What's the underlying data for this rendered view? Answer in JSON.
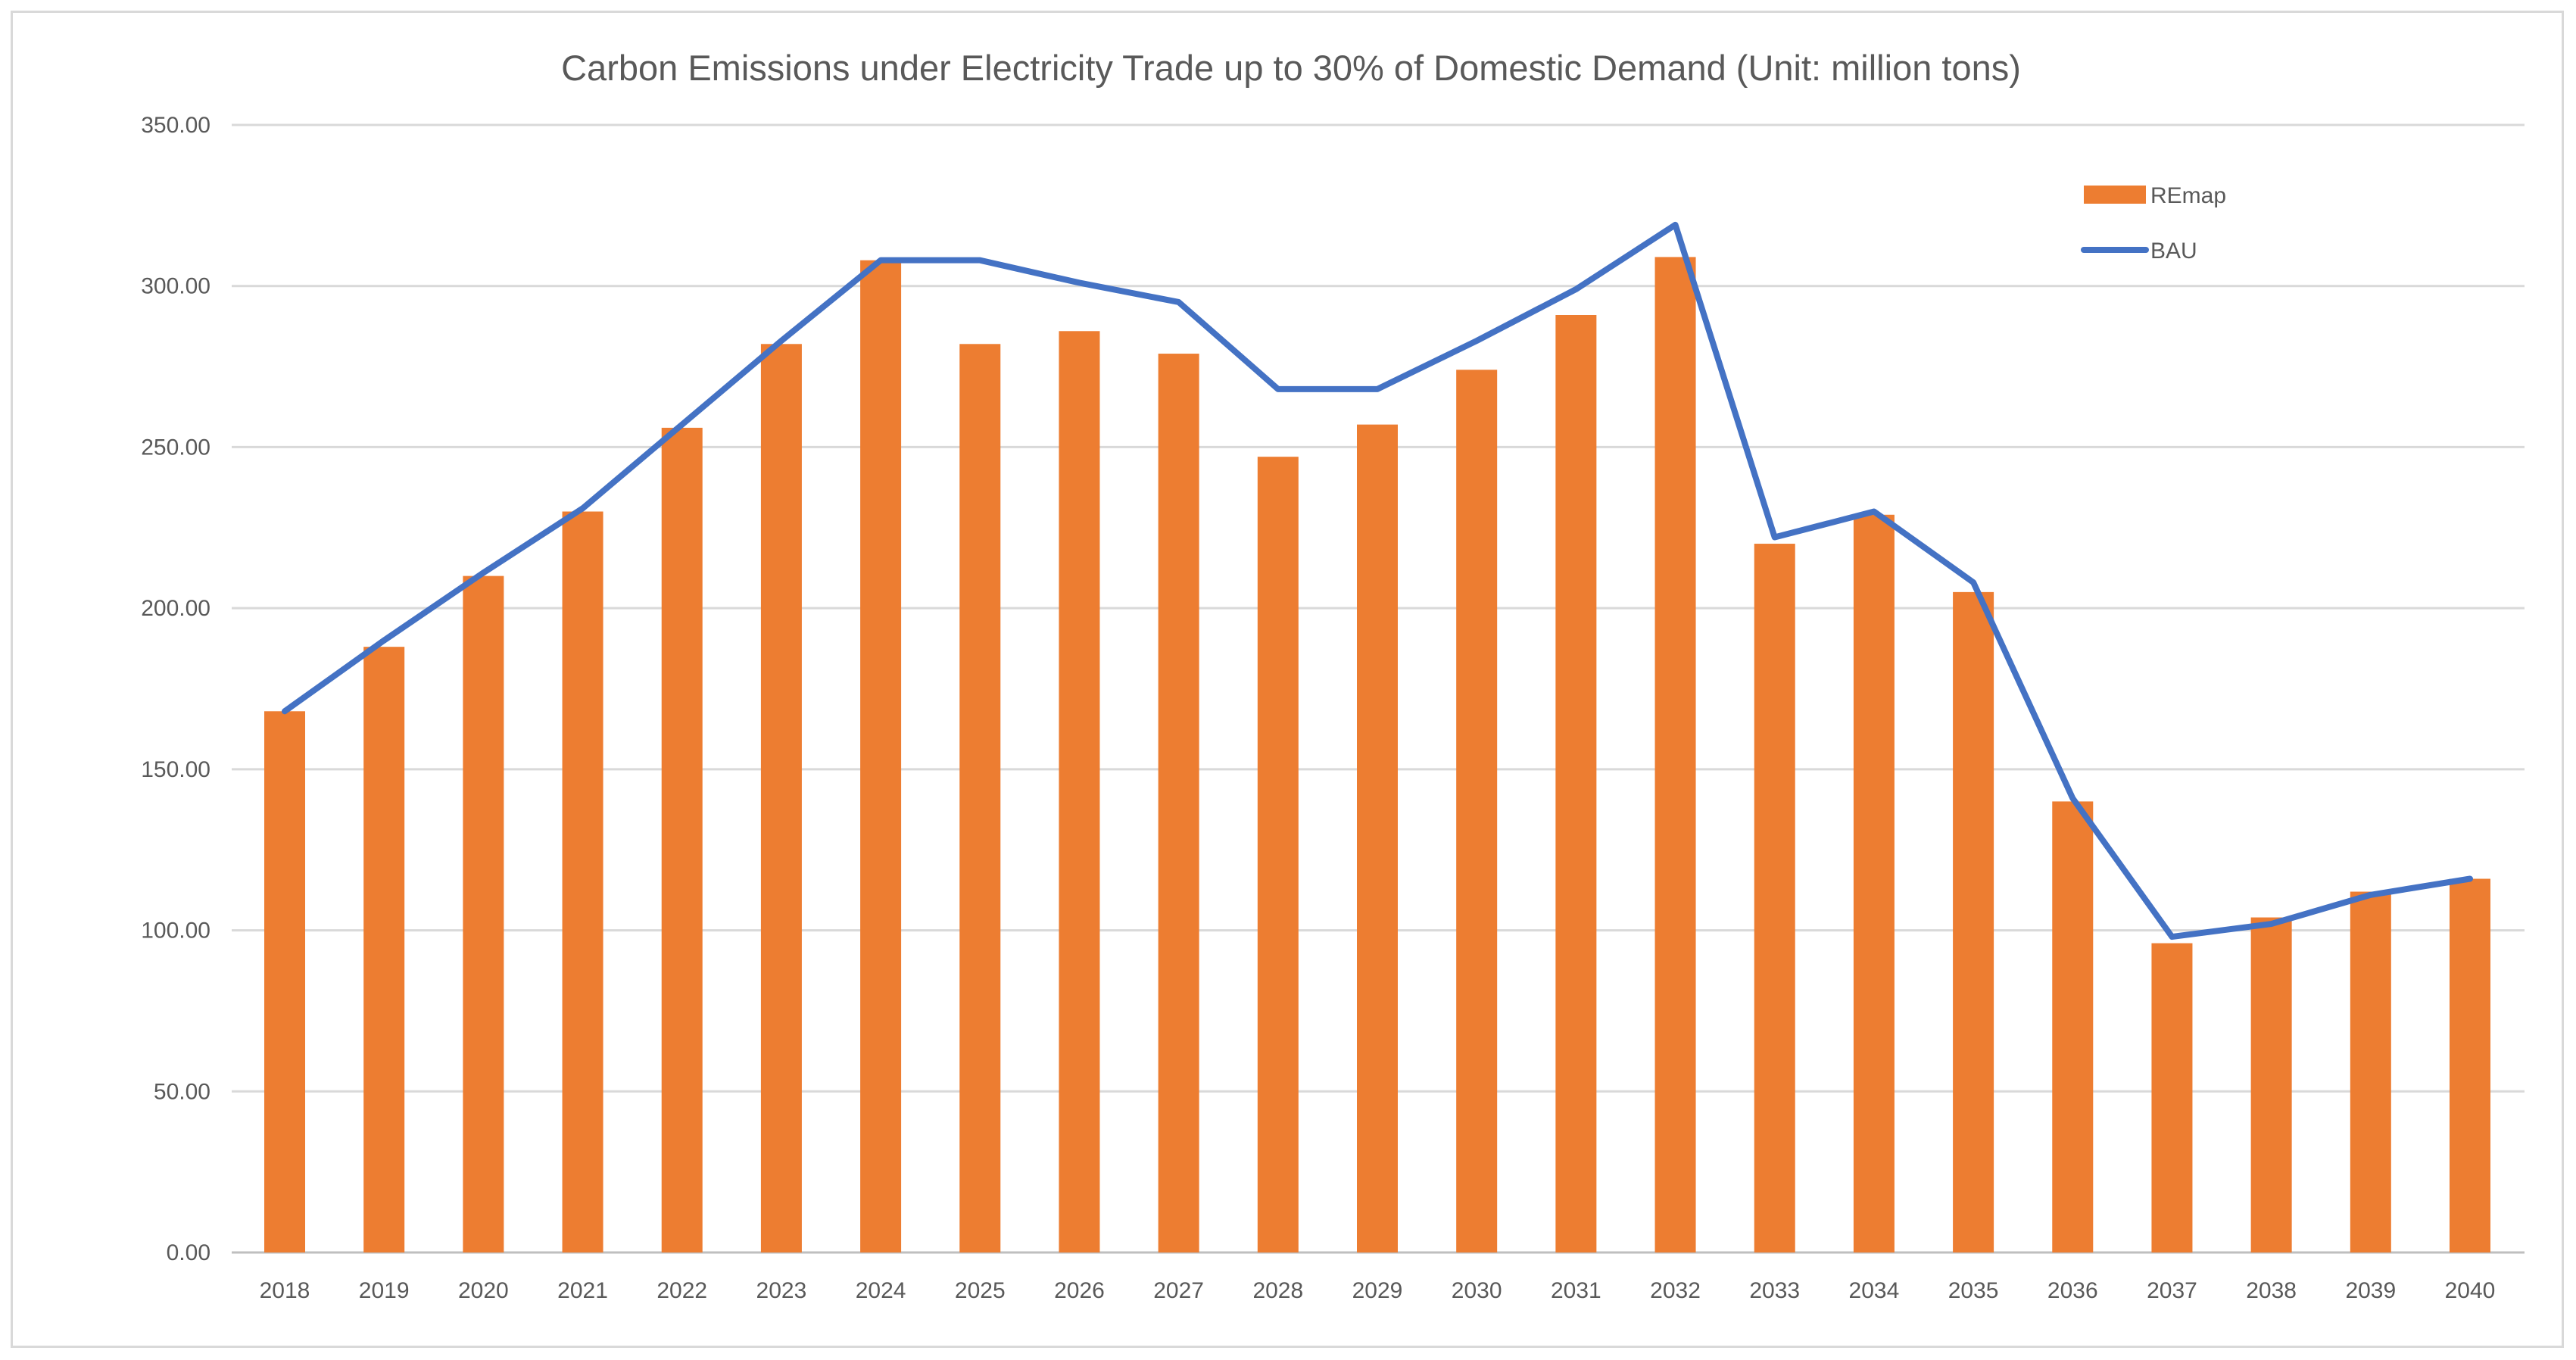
{
  "chart_data": {
    "type": "bar",
    "title": "Carbon Emissions under Electricity Trade up to 30% of Domestic Demand (Unit: million tons)",
    "xlabel": "",
    "ylabel": "",
    "ylim": [
      0,
      350
    ],
    "yticks": [
      "0.00",
      "50.00",
      "100.00",
      "150.00",
      "200.00",
      "250.00",
      "300.00",
      "350.00"
    ],
    "ytick_values": [
      0,
      50,
      100,
      150,
      200,
      250,
      300,
      350
    ],
    "grid": true,
    "legend_position": "top-right",
    "categories": [
      "2018",
      "2019",
      "2020",
      "2021",
      "2022",
      "2023",
      "2024",
      "2025",
      "2026",
      "2027",
      "2028",
      "2029",
      "2030",
      "2031",
      "2032",
      "2033",
      "2034",
      "2035",
      "2036",
      "2037",
      "2038",
      "2039",
      "2040"
    ],
    "series": [
      {
        "name": "REmap",
        "kind": "bar",
        "color": "#ED7D31",
        "values": [
          168,
          188,
          210,
          230,
          256,
          282,
          308,
          282,
          286,
          279,
          247,
          257,
          274,
          291,
          309,
          220,
          229,
          205,
          140,
          96,
          104,
          112,
          116
        ]
      },
      {
        "name": "BAU",
        "kind": "line",
        "color": "#4472C4",
        "values": [
          168,
          190,
          211,
          231,
          257,
          283,
          308,
          308,
          301,
          295,
          268,
          268,
          283,
          299,
          319,
          222,
          230,
          208,
          141,
          98,
          102,
          111,
          116
        ]
      }
    ]
  },
  "colors": {
    "gridline": "#d9d9d9",
    "axis": "#bfbfbf",
    "text": "#595959"
  }
}
